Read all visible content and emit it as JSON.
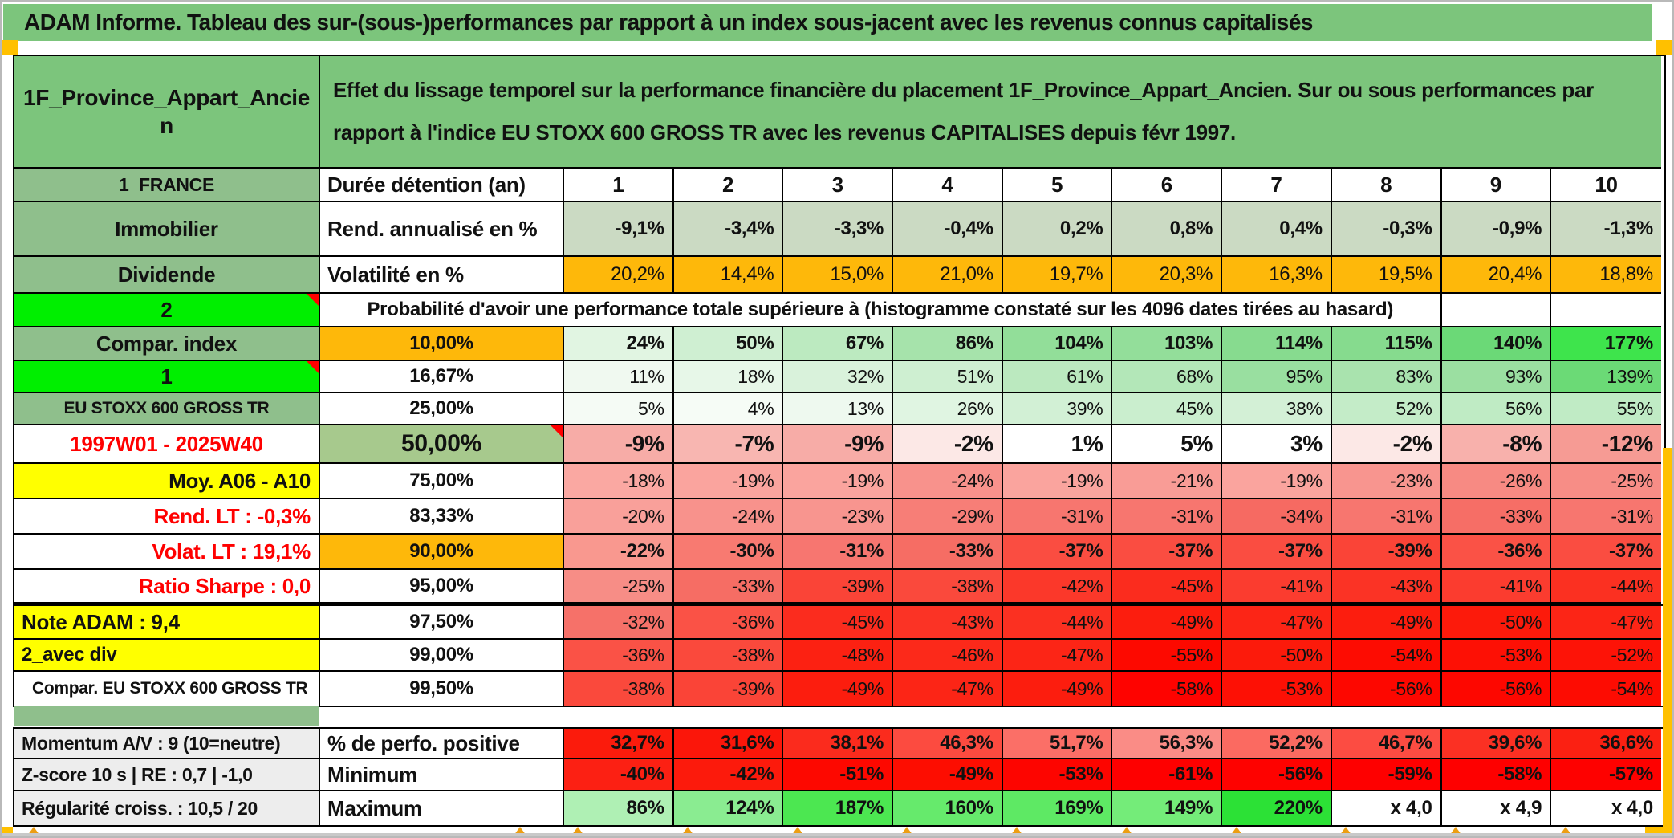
{
  "window": {
    "title": "ADAM Informe. Tableau des sur-(sous-)performances par rapport à un index sous-jacent avec les revenus connus capitalisés"
  },
  "header": {
    "product": "1F_Province_Appart_Ancien",
    "description": "Effet du lissage temporel sur la performance financière du placement 1F_Province_Appart_Ancien. Sur ou sous performances par rapport à l'indice EU STOXX 600 GROSS TR avec les revenus CAPITALISES depuis févr 1997."
  },
  "colors": {
    "title_green": "#7CC57C",
    "label_green": "#8FBF8C",
    "lime": "#00EF00",
    "sage": "#A7C98D",
    "orange_cell": "#FEB80A",
    "yellow": "#FFFF00",
    "gray_label": "#EDEDED",
    "red_text": "#FF0000",
    "corner_orange": "#FFC000",
    "bottom_strip": "#C9C9C9",
    "caret_orange": "#ED9E12"
  },
  "table": {
    "columns": [
      "1",
      "2",
      "3",
      "4",
      "5",
      "6",
      "7",
      "8",
      "9",
      "10"
    ],
    "rows": [
      {
        "label": {
          "text": "1_FRANCE",
          "bg": "#8FBF8C"
        },
        "head": {
          "text": "Durée détention (an)",
          "bg": "#FFFFFF"
        },
        "cells": [
          [
            "1",
            "#FFFFFF"
          ],
          [
            "2",
            "#FFFFFF"
          ],
          [
            "3",
            "#FFFFFF"
          ],
          [
            "4",
            "#FFFFFF"
          ],
          [
            "5",
            "#FFFFFF"
          ],
          [
            "6",
            "#FFFFFF"
          ],
          [
            "7",
            "#FFFFFF"
          ],
          [
            "8",
            "#FFFFFF"
          ],
          [
            "9",
            "#FFFFFF"
          ],
          [
            "10",
            "#FFFFFF"
          ]
        ]
      },
      {
        "label": {
          "text": "Immobilier",
          "bg": "#8FBF8C"
        },
        "head": {
          "text": "Rend. annualisé en %",
          "bg": "#FFFFFF"
        },
        "cells": [
          [
            "-9,1%",
            "#CBDAC3"
          ],
          [
            "-3,4%",
            "#CBDAC3"
          ],
          [
            "-3,3%",
            "#CBDAC3"
          ],
          [
            "-0,4%",
            "#CBDAC3"
          ],
          [
            "0,2%",
            "#CBDAC3"
          ],
          [
            "0,8%",
            "#CBDAC3"
          ],
          [
            "0,4%",
            "#CBDAC3"
          ],
          [
            "-0,3%",
            "#CBDAC3"
          ],
          [
            "-0,9%",
            "#CBDAC3"
          ],
          [
            "-1,3%",
            "#CBDAC3"
          ]
        ]
      },
      {
        "label": {
          "text": "Dividende",
          "bg": "#8FBF8C"
        },
        "head": {
          "text": "Volatilité en %",
          "bg": "#FFFFFF"
        },
        "cells": [
          [
            "20,2%",
            "#FEB80A"
          ],
          [
            "14,4%",
            "#FEB80A"
          ],
          [
            "15,0%",
            "#FEB80A"
          ],
          [
            "21,0%",
            "#FEB80A"
          ],
          [
            "19,7%",
            "#FEB80A"
          ],
          [
            "20,3%",
            "#FEB80A"
          ],
          [
            "16,3%",
            "#FEB80A"
          ],
          [
            "19,5%",
            "#FEB80A"
          ],
          [
            "20,4%",
            "#FEB80A"
          ],
          [
            "18,8%",
            "#FEB80A"
          ]
        ]
      },
      {
        "type": "merged",
        "label": {
          "text": "2",
          "bg": "#00EF00",
          "note": true
        },
        "merged": {
          "text": "Probabilité d'avoir une performance totale supérieure à (histogramme constaté sur les 4096 dates tirées au hasard)"
        },
        "empty_cells": 2
      },
      {
        "label": {
          "text": "Compar. index",
          "bg": "#8FBF8C"
        },
        "head": {
          "text": "10,00%",
          "bg": "#FEB80A"
        },
        "cells": [
          [
            "24%",
            "#E1F5E2"
          ],
          [
            "50%",
            "#CFEFD2"
          ],
          [
            "67%",
            "#BCEAC0"
          ],
          [
            "86%",
            "#A6E3AB"
          ],
          [
            "104%",
            "#92DE99"
          ],
          [
            "103%",
            "#93DE9A"
          ],
          [
            "114%",
            "#87DB8F"
          ],
          [
            "115%",
            "#86DB8E"
          ],
          [
            "140%",
            "#6BD977"
          ],
          [
            "177%",
            "#3EE44C"
          ]
        ]
      },
      {
        "label": {
          "text": "1",
          "bg": "#00EF00",
          "note": true
        },
        "head": {
          "text": "16,67%",
          "bg": "#FFFFFF"
        },
        "cells": [
          [
            "11%",
            "#F0F9F0"
          ],
          [
            "18%",
            "#E7F7E8"
          ],
          [
            "32%",
            "#D9F2DB"
          ],
          [
            "51%",
            "#CEEFD1"
          ],
          [
            "61%",
            "#BBE9BF"
          ],
          [
            "68%",
            "#B3E7B8"
          ],
          [
            "95%",
            "#99DFA0"
          ],
          [
            "83%",
            "#A9E3AE"
          ],
          [
            "93%",
            "#9BDFA1"
          ],
          [
            "139%",
            "#6BDA76"
          ]
        ]
      },
      {
        "label": {
          "text": "EU STOXX 600 GROSS TR",
          "bg": "#8FBF8C"
        },
        "head": {
          "text": "25,00%",
          "bg": "#FFFFFF"
        },
        "cells": [
          [
            "5%",
            "#F5FBF5"
          ],
          [
            "4%",
            "#F6FCF6"
          ],
          [
            "13%",
            "#EEF9EF"
          ],
          [
            "26%",
            "#E0F5E2"
          ],
          [
            "39%",
            "#D2F0D5"
          ],
          [
            "45%",
            "#CAEECE"
          ],
          [
            "38%",
            "#D3F0D6"
          ],
          [
            "52%",
            "#C4ECC8"
          ],
          [
            "56%",
            "#BFEBC4"
          ],
          [
            "55%",
            "#C0EBC5"
          ]
        ]
      },
      {
        "label": {
          "text": "1997W01 - 2025W40",
          "bg": "#FFFFFF",
          "fg": "#FF0000"
        },
        "head": {
          "text": "50,00%",
          "bg": "#A7C98D",
          "note": true
        },
        "cells": [
          [
            "-9%",
            "#F7ACA7"
          ],
          [
            "-7%",
            "#F8B6B1"
          ],
          [
            "-9%",
            "#F7ACA7"
          ],
          [
            "-2%",
            "#FCE8E6"
          ],
          [
            "1%",
            "#FFFFFF"
          ],
          [
            "5%",
            "#FFFFFF"
          ],
          [
            "3%",
            "#FFFFFF"
          ],
          [
            "-2%",
            "#FCE8E6"
          ],
          [
            "-8%",
            "#F8B1AC"
          ],
          [
            "-12%",
            "#F69B94"
          ]
        ]
      },
      {
        "label": {
          "text": "Moy. A06 - A10",
          "bg": "#FFFF00"
        },
        "head": {
          "text": "75,00%",
          "bg": "#FFFFFF"
        },
        "cells": [
          [
            "-18%",
            "#FAA8A2"
          ],
          [
            "-19%",
            "#FAA49E"
          ],
          [
            "-19%",
            "#FAA49E"
          ],
          [
            "-24%",
            "#F8928C"
          ],
          [
            "-19%",
            "#FAA49E"
          ],
          [
            "-21%",
            "#F99C96"
          ],
          [
            "-19%",
            "#FAA49E"
          ],
          [
            "-23%",
            "#F8958F"
          ],
          [
            "-26%",
            "#F78A83"
          ],
          [
            "-25%",
            "#F78D86"
          ]
        ]
      },
      {
        "label": {
          "text": "Rend. LT :  -0,3%",
          "bg": "#FFFFFF",
          "fg": "#FF0000"
        },
        "head": {
          "text": "83,33%",
          "bg": "#FFFFFF"
        },
        "cells": [
          [
            "-20%",
            "#F9A09A"
          ],
          [
            "-24%",
            "#F8928C"
          ],
          [
            "-23%",
            "#F8958F"
          ],
          [
            "-29%",
            "#F77E77"
          ],
          [
            "-31%",
            "#F7766F"
          ],
          [
            "-31%",
            "#F7766F"
          ],
          [
            "-34%",
            "#F66A62"
          ],
          [
            "-31%",
            "#F7766F"
          ],
          [
            "-33%",
            "#F66E66"
          ],
          [
            "-31%",
            "#F7766F"
          ]
        ]
      },
      {
        "label": {
          "text": "Volat. LT :  19,1%",
          "bg": "#FFFFFF",
          "fg": "#FF0000"
        },
        "head": {
          "text": "90,00%",
          "bg": "#FEB80A"
        },
        "cells": [
          [
            "-22%",
            "#F9988F"
          ],
          [
            "-30%",
            "#F87A71"
          ],
          [
            "-31%",
            "#F77670"
          ],
          [
            "-33%",
            "#F66D64"
          ],
          [
            "-37%",
            "#FA4D41"
          ],
          [
            "-37%",
            "#FA4D41"
          ],
          [
            "-37%",
            "#FA4D41"
          ],
          [
            "-39%",
            "#FA4437"
          ],
          [
            "-36%",
            "#FA5246"
          ],
          [
            "-37%",
            "#FA4D41"
          ]
        ]
      },
      {
        "label": {
          "text": "Ratio Sharpe :  0,0",
          "bg": "#FFFFFF",
          "fg": "#FF0000"
        },
        "head": {
          "text": "95,00%",
          "bg": "#FFFFFF"
        },
        "cells": [
          [
            "-25%",
            "#F78D86"
          ],
          [
            "-33%",
            "#F66D64"
          ],
          [
            "-39%",
            "#FA4437"
          ],
          [
            "-38%",
            "#FA493C"
          ],
          [
            "-42%",
            "#FB382A"
          ],
          [
            "-45%",
            "#FB2C1E"
          ],
          [
            "-41%",
            "#FB3C2F"
          ],
          [
            "-43%",
            "#FB3325"
          ],
          [
            "-41%",
            "#FB3C2F"
          ],
          [
            "-44%",
            "#FB3021"
          ]
        ]
      },
      {
        "label": {
          "text": "Note ADAM : 9,4",
          "bg": "#FFFF00"
        },
        "head": {
          "text": "97,50%",
          "bg": "#FFFFFF"
        },
        "cells": [
          [
            "-32%",
            "#F67169"
          ],
          [
            "-36%",
            "#FA5246"
          ],
          [
            "-45%",
            "#FB2C1E"
          ],
          [
            "-43%",
            "#FB3325"
          ],
          [
            "-44%",
            "#FB3021"
          ],
          [
            "-49%",
            "#FC1D0E"
          ],
          [
            "-47%",
            "#FC2516"
          ],
          [
            "-49%",
            "#FC1D0E"
          ],
          [
            "-50%",
            "#FC1A0B"
          ],
          [
            "-47%",
            "#FC2516"
          ]
        ]
      },
      {
        "label": {
          "text": "2_avec div",
          "bg": "#FFFF00"
        },
        "head": {
          "text": "99,00%",
          "bg": "#FFFFFF"
        },
        "cells": [
          [
            "-36%",
            "#FA5246"
          ],
          [
            "-38%",
            "#FA493C"
          ],
          [
            "-48%",
            "#FC2112"
          ],
          [
            "-46%",
            "#FC291A"
          ],
          [
            "-47%",
            "#FC2516"
          ],
          [
            "-55%",
            "#FD0900"
          ],
          [
            "-50%",
            "#FC1A0B"
          ],
          [
            "-54%",
            "#FD0C02"
          ],
          [
            "-53%",
            "#FD1005"
          ],
          [
            "-52%",
            "#FD1307"
          ]
        ]
      },
      {
        "label": {
          "text": "Compar. EU STOXX 600 GROSS TR",
          "bg": "#FFFFFF"
        },
        "head": {
          "text": "99,50%",
          "bg": "#FFFFFF"
        },
        "cells": [
          [
            "-38%",
            "#FA493C"
          ],
          [
            "-39%",
            "#FA4437"
          ],
          [
            "-49%",
            "#FC1D0E"
          ],
          [
            "-47%",
            "#FC2516"
          ],
          [
            "-49%",
            "#FC1D0E"
          ],
          [
            "-58%",
            "#FE0300"
          ],
          [
            "-53%",
            "#FD1005"
          ],
          [
            "-56%",
            "#FD0700"
          ],
          [
            "-56%",
            "#FD0700"
          ],
          [
            "-54%",
            "#FD0C02"
          ]
        ]
      }
    ]
  },
  "bottom": {
    "rows": [
      {
        "label": {
          "text": "Momentum A/V : 9 (10=neutre)",
          "bg": "#EDEDED"
        },
        "head": {
          "text": "% de perfo. positive",
          "bg": "#FFFFFF"
        },
        "cells": [
          [
            "32,7%",
            "#FB1B0C"
          ],
          [
            "31,6%",
            "#FB160A"
          ],
          [
            "38,1%",
            "#FB2B1D"
          ],
          [
            "46,3%",
            "#FC4B40"
          ],
          [
            "51,7%",
            "#FB6F67"
          ],
          [
            "56,3%",
            "#FA8C86"
          ],
          [
            "52,2%",
            "#FB6A61"
          ],
          [
            "46,7%",
            "#FC4C42"
          ],
          [
            "39,6%",
            "#FB3023"
          ],
          [
            "36,6%",
            "#FB2012"
          ]
        ]
      },
      {
        "label": {
          "text": "Z-score 10 s | RE : 0,7 | -1,0",
          "bg": "#EDEDED"
        },
        "head": {
          "text": "Minimum",
          "bg": "#FFFFFF"
        },
        "cells": [
          [
            "-40%",
            "#FC2013"
          ],
          [
            "-42%",
            "#FC1A0C"
          ],
          [
            "-51%",
            "#FD0800"
          ],
          [
            "-49%",
            "#FD0D01"
          ],
          [
            "-53%",
            "#FD0500"
          ],
          [
            "-61%",
            "#FE0000"
          ],
          [
            "-56%",
            "#FE0200"
          ],
          [
            "-59%",
            "#FE0000"
          ],
          [
            "-58%",
            "#FE0000"
          ],
          [
            "-57%",
            "#FE0100"
          ]
        ]
      },
      {
        "label": {
          "text": "Régularité croiss. : 10,5 / 20",
          "bg": "#EDEDED"
        },
        "head": {
          "text": "Maximum",
          "bg": "#FFFFFF"
        },
        "cells": [
          [
            "86%",
            "#AFF0B4"
          ],
          [
            "124%",
            "#8AEC91"
          ],
          [
            "187%",
            "#4CE751"
          ],
          [
            "160%",
            "#66EA6C"
          ],
          [
            "169%",
            "#5EE964"
          ],
          [
            "149%",
            "#74EC79"
          ],
          [
            "220%",
            "#2CE136"
          ],
          [
            "x 4,0",
            "#FFFFFF"
          ],
          [
            "x 4,9",
            "#FFFFFF"
          ],
          [
            "x 4,0",
            "#FFFFFF"
          ]
        ]
      }
    ]
  }
}
